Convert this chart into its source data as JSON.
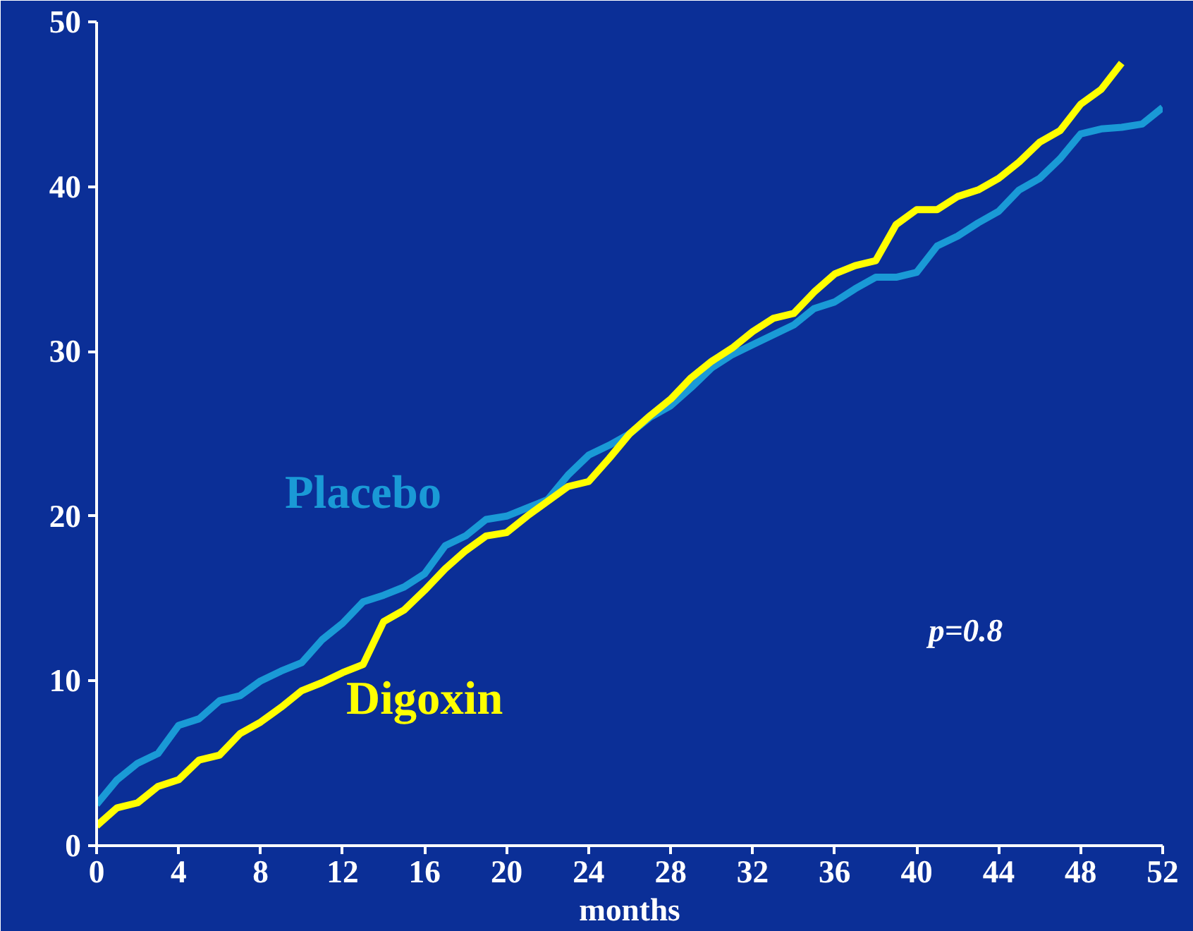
{
  "chart_data": {
    "type": "line",
    "xlabel": "months",
    "x": [
      0,
      1,
      2,
      3,
      4,
      5,
      6,
      7,
      8,
      9,
      10,
      11,
      12,
      13,
      14,
      15,
      16,
      17,
      18,
      19,
      20,
      21,
      22,
      23,
      24,
      25,
      26,
      27,
      28,
      29,
      30,
      31,
      32,
      33,
      34,
      35,
      36,
      37,
      38,
      39,
      40,
      41,
      42,
      43,
      44,
      45,
      46,
      47,
      48,
      49,
      50,
      51,
      52
    ],
    "series": [
      {
        "name": "Placebo",
        "color": "#1a9ad6",
        "values": [
          2.5,
          4,
          5,
          5.6,
          7.3,
          7.7,
          8.8,
          9.1,
          10,
          10.6,
          11.1,
          12.5,
          13.5,
          14.8,
          15.2,
          15.7,
          16.5,
          18.2,
          18.8,
          19.8,
          20,
          20.5,
          21,
          22.5,
          23.7,
          24.3,
          25,
          26,
          26.7,
          27.8,
          29,
          29.8,
          30.4,
          31,
          31.6,
          32.6,
          33,
          33.8,
          34.5,
          34.5,
          34.8,
          36.4,
          37,
          37.8,
          38.5,
          39.8,
          40.5,
          41.7,
          43.2,
          43.5,
          43.6,
          43.8,
          44.8
        ]
      },
      {
        "name": "Digoxin",
        "color": "#ffff00",
        "values": [
          1.2,
          2.3,
          2.6,
          3.6,
          4.0,
          5.2,
          5.5,
          6.8,
          7.5,
          8.4,
          9.4,
          9.9,
          10.5,
          11,
          13.6,
          14.3,
          15.5,
          16.8,
          17.9,
          18.8,
          19,
          20,
          20.9,
          21.8,
          22.1,
          23.5,
          25,
          26.1,
          27.1,
          28.4,
          29.4,
          30.2,
          31.2,
          32,
          32.3,
          33.6,
          34.7,
          35.2,
          35.5,
          37.7,
          38.6,
          38.6,
          39.4,
          39.8,
          40.5,
          41.5,
          42.7,
          43.4,
          45,
          45.9,
          47.5,
          null,
          null
        ]
      }
    ],
    "xlim": [
      0,
      52
    ],
    "xticks": [
      0,
      4,
      8,
      12,
      16,
      20,
      24,
      28,
      32,
      36,
      40,
      44,
      48,
      52
    ],
    "ylim": [
      0,
      50
    ],
    "yticks": [
      0,
      10,
      20,
      30,
      40,
      50
    ],
    "grid": false,
    "marker": "none",
    "line_style": "solid",
    "annotations": [
      "p=0.8"
    ]
  }
}
